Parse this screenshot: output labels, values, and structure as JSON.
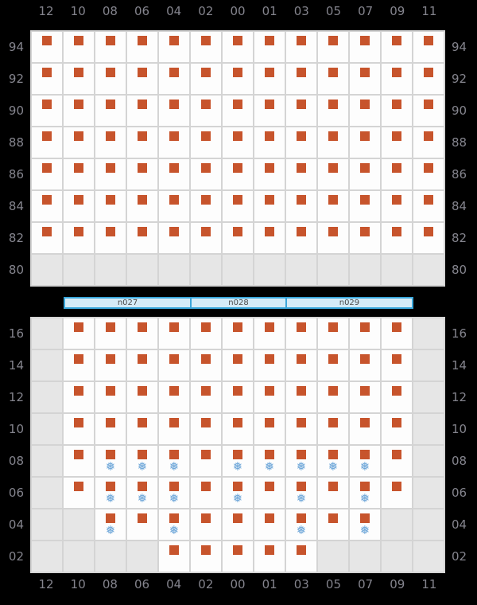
{
  "colors": {
    "background": "#000000",
    "axis_label": "#84848d",
    "grid_line": "#d4d4d4",
    "cell_bg": "#fdfdfd",
    "cell_empty_bg": "#e6e6e6",
    "occupied_marker": "#c7542c",
    "snowflake": "#68a3d7",
    "node_bar_border": "#3aa6da",
    "node_bar_fill": "#d5ebf7",
    "node_bar_text": "#4a4a4a"
  },
  "icons": {
    "snowflake_glyph": "❅"
  },
  "columns": [
    "12",
    "10",
    "08",
    "06",
    "04",
    "02",
    "00",
    "01",
    "03",
    "05",
    "07",
    "09",
    "11"
  ],
  "top_panel": {
    "rows": [
      {
        "label": "94",
        "cells": [
          "square",
          "square",
          "square",
          "square",
          "square",
          "square",
          "square",
          "square",
          "square",
          "square",
          "square",
          "square",
          "square"
        ]
      },
      {
        "label": "92",
        "cells": [
          "square",
          "square",
          "square",
          "square",
          "square",
          "square",
          "square",
          "square",
          "square",
          "square",
          "square",
          "square",
          "square"
        ]
      },
      {
        "label": "90",
        "cells": [
          "square",
          "square",
          "square",
          "square",
          "square",
          "square",
          "square",
          "square",
          "square",
          "square",
          "square",
          "square",
          "square"
        ]
      },
      {
        "label": "88",
        "cells": [
          "square",
          "square",
          "square",
          "square",
          "square",
          "square",
          "square",
          "square",
          "square",
          "square",
          "square",
          "square",
          "square"
        ]
      },
      {
        "label": "86",
        "cells": [
          "square",
          "square",
          "square",
          "square",
          "square",
          "square",
          "square",
          "square",
          "square",
          "square",
          "square",
          "square",
          "square"
        ]
      },
      {
        "label": "84",
        "cells": [
          "square",
          "square",
          "square",
          "square",
          "square",
          "square",
          "square",
          "square",
          "square",
          "square",
          "square",
          "square",
          "square"
        ]
      },
      {
        "label": "82",
        "cells": [
          "square",
          "square",
          "square",
          "square",
          "square",
          "square",
          "square",
          "square",
          "square",
          "square",
          "square",
          "square",
          "square"
        ]
      },
      {
        "label": "80",
        "cells": [
          "empty",
          "empty",
          "empty",
          "empty",
          "empty",
          "empty",
          "empty",
          "empty",
          "empty",
          "empty",
          "empty",
          "empty",
          "empty"
        ]
      }
    ]
  },
  "node_bar": {
    "segments": [
      {
        "label": "n027",
        "span": 4
      },
      {
        "label": "n028",
        "span": 3
      },
      {
        "label": "n029",
        "span": 4
      }
    ]
  },
  "bottom_panel": {
    "rows": [
      {
        "label": "16",
        "cells": [
          "empty",
          "square",
          "square",
          "square",
          "square",
          "square",
          "square",
          "square",
          "square",
          "square",
          "square",
          "square",
          "empty"
        ]
      },
      {
        "label": "14",
        "cells": [
          "empty",
          "square",
          "square",
          "square",
          "square",
          "square",
          "square",
          "square",
          "square",
          "square",
          "square",
          "square",
          "empty"
        ]
      },
      {
        "label": "12",
        "cells": [
          "empty",
          "square",
          "square",
          "square",
          "square",
          "square",
          "square",
          "square",
          "square",
          "square",
          "square",
          "square",
          "empty"
        ]
      },
      {
        "label": "10",
        "cells": [
          "empty",
          "square",
          "square",
          "square",
          "square",
          "square",
          "square",
          "square",
          "square",
          "square",
          "square",
          "square",
          "empty"
        ]
      },
      {
        "label": "08",
        "cells": [
          "empty",
          "square",
          "snow",
          "snow",
          "snow",
          "square",
          "snow",
          "snow",
          "snow",
          "snow",
          "snow",
          "square",
          "empty"
        ]
      },
      {
        "label": "06",
        "cells": [
          "empty",
          "square",
          "snow",
          "snow",
          "snow",
          "square",
          "snow",
          "square",
          "snow",
          "square",
          "snow",
          "square",
          "empty"
        ]
      },
      {
        "label": "04",
        "cells": [
          "empty",
          "empty",
          "snow",
          "square",
          "snow",
          "square",
          "square",
          "square",
          "snow",
          "square",
          "snow",
          "empty",
          "empty"
        ]
      },
      {
        "label": "02",
        "cells": [
          "empty",
          "empty",
          "empty",
          "empty",
          "square",
          "square",
          "square",
          "square",
          "square",
          "empty",
          "empty",
          "empty",
          "empty"
        ]
      }
    ]
  }
}
